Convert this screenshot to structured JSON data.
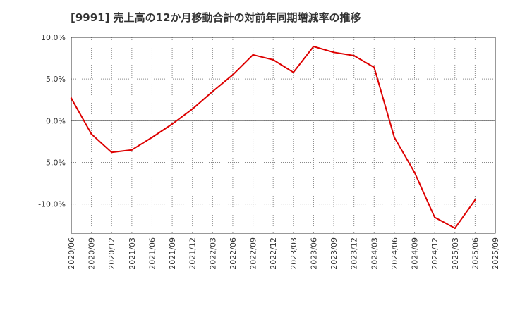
{
  "chart_data": {
    "type": "line",
    "title": "[9991]  売上高の12か月移動合計の対前年同期増減率の推移",
    "xlabel": "",
    "ylabel": "",
    "ylim": [
      -13.5,
      10.0
    ],
    "y_ticks": [
      10.0,
      5.0,
      0.0,
      -5.0,
      -10.0
    ],
    "y_tick_labels": [
      "10.0%",
      "5.0%",
      "0.0%",
      "-5.0%",
      "-10.0%"
    ],
    "categories": [
      "2020/06",
      "2020/09",
      "2020/12",
      "2021/03",
      "2021/06",
      "2021/09",
      "2021/12",
      "2022/03",
      "2022/06",
      "2022/09",
      "2022/12",
      "2023/03",
      "2023/06",
      "2023/09",
      "2023/12",
      "2024/03",
      "2024/06",
      "2024/09",
      "2024/12",
      "2025/03",
      "2025/06",
      "2025/09"
    ],
    "grid": true,
    "legend": "none",
    "series": [
      {
        "color": "#dd0000",
        "values": [
          2.7,
          -1.6,
          -3.8,
          -3.5,
          -2.0,
          -0.4,
          1.4,
          3.5,
          5.5,
          7.9,
          7.3,
          5.8,
          8.9,
          8.2,
          7.8,
          6.4,
          -2.0,
          -6.2,
          -11.6,
          -12.9,
          -9.5,
          null
        ]
      }
    ]
  }
}
